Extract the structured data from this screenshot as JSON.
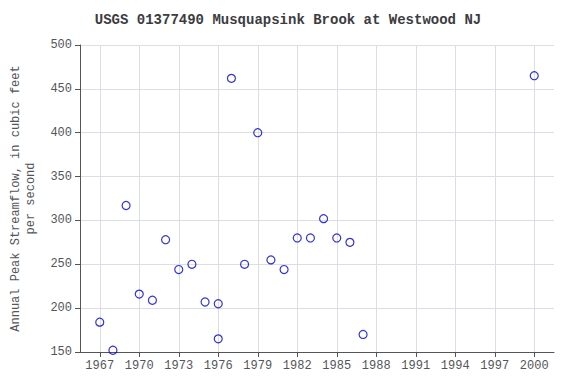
{
  "chart_data": {
    "type": "scatter",
    "title": "USGS 01377490 Musquapsink Brook at Westwood NJ",
    "ylabel": "Annual Peak Streamflow, in cubic feet\nper second",
    "x": [
      1967,
      1968,
      1969,
      1970,
      1971,
      1972,
      1973,
      1974,
      1975,
      1976,
      1976,
      1977,
      1978,
      1979,
      1980,
      1981,
      1982,
      1983,
      1984,
      1985,
      1986,
      1987,
      2000
    ],
    "values": [
      184,
      152,
      317,
      216,
      209,
      278,
      244,
      250,
      207,
      165,
      205,
      462,
      250,
      400,
      255,
      244,
      280,
      280,
      302,
      280,
      275,
      170,
      465
    ],
    "color": "#0000cc",
    "xlim": [
      1965.5,
      2001.5
    ],
    "xticks": [
      1967,
      1970,
      1973,
      1976,
      1979,
      1982,
      1985,
      1988,
      1991,
      1994,
      1997,
      2000
    ],
    "ylim": [
      150,
      500
    ],
    "yticks": [
      150,
      200,
      250,
      300,
      350,
      400,
      450,
      500
    ],
    "grid": true
  }
}
